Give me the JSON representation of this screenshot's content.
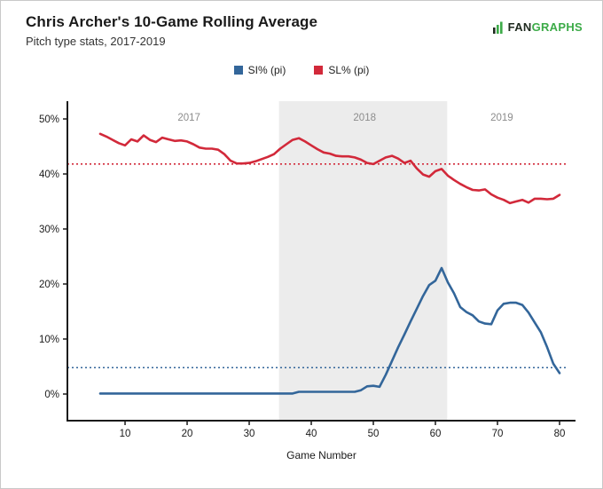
{
  "header": {
    "title": "Chris Archer's 10-Game Rolling Average",
    "subtitle": "Pitch type stats, 2017-2019"
  },
  "logo": {
    "fan": "FAN",
    "graphs": "GRAPHS",
    "green": "#3cab48",
    "dark": "#1f2a1f"
  },
  "legend": [
    {
      "label": "SI% (pi)",
      "color": "#33669a"
    },
    {
      "label": "SL% (pi)",
      "color": "#d2293a"
    }
  ],
  "chart_data": {
    "type": "line",
    "title": "Chris Archer's 10-Game Rolling Average",
    "subtitle": "Pitch type stats, 2017-2019",
    "xlabel": "Game Number",
    "ylabel": "",
    "x": [
      6,
      7,
      8,
      9,
      10,
      11,
      12,
      13,
      14,
      15,
      16,
      17,
      18,
      19,
      20,
      21,
      22,
      23,
      24,
      25,
      26,
      27,
      28,
      29,
      30,
      31,
      32,
      33,
      34,
      35,
      36,
      37,
      38,
      39,
      40,
      41,
      42,
      43,
      44,
      45,
      46,
      47,
      48,
      49,
      50,
      51,
      52,
      53,
      54,
      55,
      56,
      57,
      58,
      59,
      60,
      61,
      62,
      63,
      64,
      65,
      66,
      67,
      68,
      69,
      70,
      71,
      72,
      73,
      74,
      75,
      76,
      77,
      78,
      79,
      80
    ],
    "series": [
      {
        "name": "SI% (pi)",
        "color": "#33669a",
        "values": [
          0.1,
          0.1,
          0.1,
          0.1,
          0.1,
          0.1,
          0.1,
          0.1,
          0.1,
          0.1,
          0.1,
          0.1,
          0.1,
          0.1,
          0.1,
          0.1,
          0.1,
          0.1,
          0.1,
          0.1,
          0.1,
          0.1,
          0.1,
          0.1,
          0.1,
          0.1,
          0.1,
          0.1,
          0.1,
          0.1,
          0.1,
          0.1,
          0.4,
          0.4,
          0.4,
          0.4,
          0.4,
          0.4,
          0.4,
          0.4,
          0.4,
          0.4,
          0.7,
          1.4,
          1.5,
          1.3,
          3.5,
          6.0,
          8.5,
          10.8,
          13.2,
          15.5,
          17.8,
          19.8,
          20.6,
          22.9,
          20.3,
          18.3,
          15.8,
          14.9,
          14.3,
          13.2,
          12.8,
          12.7,
          15.2,
          16.4,
          16.6,
          16.6,
          16.2,
          14.8,
          13.0,
          11.2,
          8.5,
          5.5,
          3.8
        ]
      },
      {
        "name": "SL% (pi)",
        "color": "#d2293a",
        "values": [
          47.3,
          46.8,
          46.2,
          45.6,
          45.2,
          46.3,
          45.9,
          47.0,
          46.2,
          45.8,
          46.6,
          46.3,
          46.0,
          46.1,
          45.9,
          45.4,
          44.8,
          44.6,
          44.6,
          44.4,
          43.6,
          42.4,
          41.9,
          41.9,
          42.0,
          42.3,
          42.7,
          43.1,
          43.6,
          44.6,
          45.4,
          46.2,
          46.5,
          45.9,
          45.2,
          44.5,
          43.9,
          43.7,
          43.3,
          43.2,
          43.2,
          43.0,
          42.6,
          42.0,
          41.8,
          42.4,
          43.0,
          43.3,
          42.8,
          42.0,
          42.4,
          41.0,
          39.9,
          39.5,
          40.5,
          40.9,
          39.7,
          38.9,
          38.2,
          37.6,
          37.1,
          37.0,
          37.2,
          36.3,
          35.7,
          35.3,
          34.7,
          35.0,
          35.3,
          34.8,
          35.5,
          35.5,
          35.4,
          35.5,
          36.2
        ]
      }
    ],
    "reference_lines": [
      {
        "series": "SL% (pi)",
        "value": 41.8,
        "color": "#d2293a",
        "style": "dotted"
      },
      {
        "series": "SI% (pi)",
        "value": 4.8,
        "color": "#33669a",
        "style": "dotted"
      }
    ],
    "shaded_region": {
      "x_start": 34.8,
      "x_end": 61.9,
      "label": "2018",
      "color": "#ececec"
    },
    "year_labels": [
      {
        "text": "2017",
        "x": 20.3
      },
      {
        "text": "2018",
        "x": 48.6
      },
      {
        "text": "2019",
        "x": 70.7
      }
    ],
    "x_ticks": [
      10,
      20,
      30,
      40,
      50,
      60,
      70,
      80
    ],
    "y_ticks": [
      0,
      10,
      20,
      30,
      40,
      50
    ],
    "y_tick_suffix": "%",
    "xlim": [
      0.71,
      82.57
    ],
    "ylim": [
      -4.84,
      53.23
    ],
    "grid": false,
    "legend_position": "top-center"
  }
}
